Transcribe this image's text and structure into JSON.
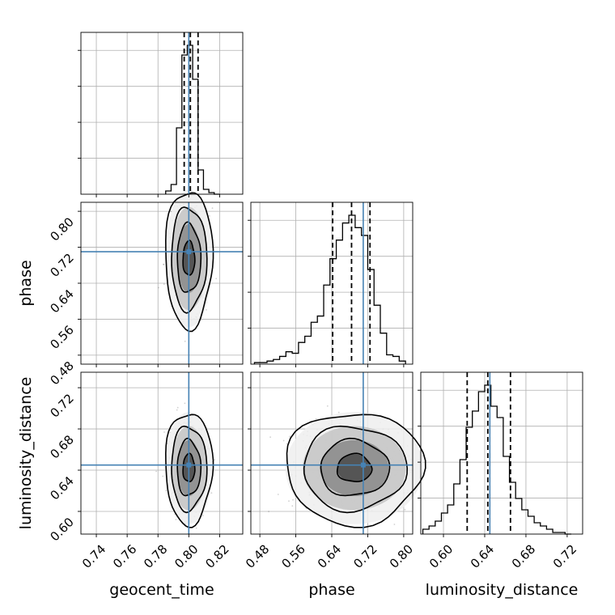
{
  "chart_data": {
    "type": "corner",
    "parameters": [
      "geocent_time",
      "phase",
      "luminosity_distance"
    ],
    "axis_labels": {
      "geocent_time": "geocent_time",
      "phase": "phase",
      "luminosity_distance": "luminosity_distance"
    },
    "ranges": {
      "geocent_time": [
        0.73,
        0.835
      ],
      "phase": [
        0.46,
        0.82
      ],
      "luminosity_distance": [
        0.578,
        0.735
      ]
    },
    "ticks": {
      "geocent_time": [
        "0.74",
        "0.76",
        "0.78",
        "0.80",
        "0.82"
      ],
      "phase": [
        "0.48",
        "0.56",
        "0.64",
        "0.72",
        "0.80"
      ],
      "luminosity_distance": [
        "0.60",
        "0.64",
        "0.68",
        "0.72"
      ]
    },
    "truths": {
      "geocent_time": 0.8,
      "phase": 0.71,
      "luminosity_distance": 0.645
    },
    "truth_color": "#4682b4",
    "quantiles": {
      "geocent_time": [
        0.797,
        0.801,
        0.806
      ],
      "phase": [
        0.642,
        0.684,
        0.725
      ],
      "luminosity_distance": [
        0.623,
        0.643,
        0.665
      ]
    },
    "histograms": {
      "geocent_time": {
        "edges": [
          0.785,
          0.7885,
          0.792,
          0.7955,
          0.799,
          0.8025,
          0.806,
          0.8095,
          0.813,
          0.8165,
          0.82
        ],
        "counts": [
          2,
          6,
          41,
          86,
          92,
          71,
          15,
          3,
          1,
          0
        ]
      },
      "phase": {
        "edges": [
          0.468,
          0.482,
          0.496,
          0.51,
          0.524,
          0.538,
          0.552,
          0.566,
          0.58,
          0.594,
          0.608,
          0.622,
          0.636,
          0.65,
          0.664,
          0.678,
          0.692,
          0.706,
          0.72,
          0.734,
          0.748,
          0.762,
          0.776,
          0.79,
          0.804
        ],
        "counts": [
          1,
          1,
          2,
          3,
          5,
          8,
          7,
          14,
          18,
          27,
          31,
          51,
          68,
          80,
          91,
          96,
          88,
          83,
          61,
          38,
          20,
          6,
          5,
          2
        ]
      },
      "luminosity_distance": {
        "edges": [
          0.58,
          0.586,
          0.592,
          0.598,
          0.604,
          0.61,
          0.616,
          0.622,
          0.628,
          0.634,
          0.64,
          0.646,
          0.652,
          0.658,
          0.664,
          0.67,
          0.676,
          0.682,
          0.688,
          0.694,
          0.7,
          0.706,
          0.712,
          0.718,
          0.724
        ],
        "counts": [
          3,
          5,
          8,
          13,
          18,
          31,
          46,
          66,
          76,
          88,
          92,
          79,
          72,
          48,
          32,
          22,
          15,
          11,
          7,
          5,
          3,
          1,
          1,
          0
        ]
      }
    },
    "pairs": [
      {
        "x": "geocent_time",
        "y": "phase",
        "mean": [
          0.8,
          0.695
        ],
        "sd": [
          0.0045,
          0.045
        ]
      },
      {
        "x": "geocent_time",
        "y": "luminosity_distance",
        "mean": [
          0.8,
          0.642
        ],
        "sd": [
          0.0045,
          0.016
        ]
      },
      {
        "x": "phase",
        "y": "luminosity_distance",
        "mean": [
          0.69,
          0.642
        ],
        "sd": [
          0.045,
          0.016
        ]
      }
    ],
    "contour_levels_sigma": [
      0.5,
      1.0,
      1.5,
      2.0
    ]
  }
}
